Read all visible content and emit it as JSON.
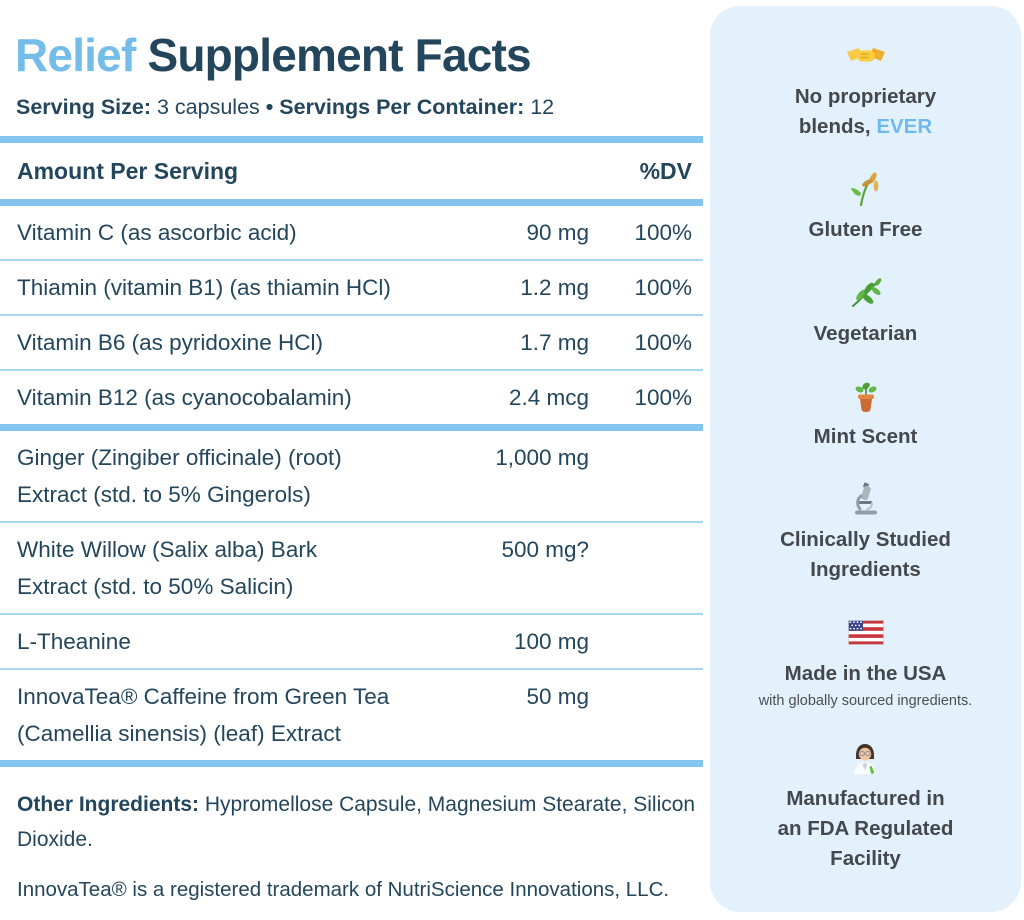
{
  "colors": {
    "navy_text": "#23465C",
    "accent_blue": "#74BCEA",
    "divider_blue": "#85C3EF",
    "divider_thin_blue": "#A9D4F2",
    "card_background": "#E3F1FC",
    "sidebar_text": "#44484C"
  },
  "header": {
    "title_accent": "Relief",
    "title_rest": " Supplement Facts",
    "serving_size_label": "Serving Size:",
    "serving_size_value": "3 capsules",
    "separator": "•",
    "servings_per_container_label": "Servings Per Container:",
    "servings_per_container_value": "12"
  },
  "supplement_table": {
    "amount_header": "Amount Per Serving",
    "dv_header": "%DV",
    "rows": [
      {
        "lines": [
          "Vitamin C (as ascorbic acid)"
        ],
        "amount": "90 mg",
        "dv": "100%",
        "divider_after": "thin"
      },
      {
        "lines": [
          "Thiamin (vitamin B1) (as thiamin HCl)"
        ],
        "amount": "1.2 mg",
        "dv": "100%",
        "divider_after": "thin"
      },
      {
        "lines": [
          "Vitamin B6 (as pyridoxine HCl)"
        ],
        "amount": "1.7 mg",
        "dv": "100%",
        "divider_after": "thin"
      },
      {
        "lines": [
          "Vitamin B12 (as cyanocobalamin)"
        ],
        "amount": "2.4 mcg",
        "dv": "100%",
        "divider_after": "thick"
      },
      {
        "lines": [
          "Ginger (Zingiber officinale) (root)",
          "Extract (std. to 5% Gingerols)"
        ],
        "amount": "1,000 mg",
        "dv": "",
        "divider_after": "thin"
      },
      {
        "lines": [
          "White Willow (Salix alba) Bark",
          "Extract (std. to 50% Salicin)"
        ],
        "amount": "500 mg?",
        "dv": "",
        "divider_after": "thin"
      },
      {
        "lines": [
          "L-Theanine"
        ],
        "amount": "100 mg",
        "dv": "",
        "divider_after": "thin"
      },
      {
        "lines": [
          "InnovaTea® Caffeine from Green Tea",
          "(Camellia sinensis) (leaf) Extract"
        ],
        "amount": "50 mg",
        "dv": "",
        "divider_after": "thick"
      }
    ]
  },
  "notes": {
    "other_ingredients_label": "Other Ingredients:",
    "other_ingredients_value": "Hypromellose Capsule, Magnesium Stearate, Silicon Dioxide.",
    "trademark_note": "InnovaTea® is a registered trademark of NutriScience Innovations, LLC."
  },
  "sidebar": {
    "items": [
      {
        "icon": "handshake-icon",
        "text": "No proprietary\nblends, EVER",
        "accent": "EVER"
      },
      {
        "icon": "rice-sheaf-icon",
        "text": "Gluten Free"
      },
      {
        "icon": "herb-icon",
        "text": "Vegetarian"
      },
      {
        "icon": "potted-plant-icon",
        "text": "Mint Scent"
      },
      {
        "icon": "microscope-icon",
        "text": "Clinically Studied\nIngredients"
      },
      {
        "icon": "usa-flag-icon",
        "text": "Made in the USA",
        "sub": "with globally sourced ingredients."
      },
      {
        "icon": "scientist-icon",
        "text": "Manufactured in\nan FDA Regulated\nFacility"
      }
    ]
  }
}
